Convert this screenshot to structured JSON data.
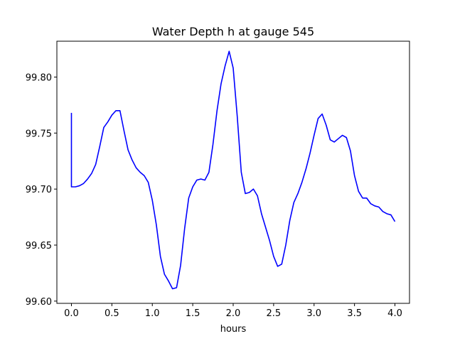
{
  "chart_data": {
    "type": "line",
    "title": "Water Depth h at gauge 545",
    "xlabel": "hours",
    "ylabel": "",
    "xlim": [
      -0.18,
      4.18
    ],
    "ylim": [
      99.598,
      99.832
    ],
    "xticks": [
      0.0,
      0.5,
      1.0,
      1.5,
      2.0,
      2.5,
      3.0,
      3.5,
      4.0
    ],
    "xtick_labels": [
      "0.0",
      "0.5",
      "1.0",
      "1.5",
      "2.0",
      "2.5",
      "3.0",
      "3.5",
      "4.0"
    ],
    "yticks": [
      99.6,
      99.65,
      99.7,
      99.75,
      99.8
    ],
    "ytick_labels": [
      "99.60",
      "99.65",
      "99.70",
      "99.75",
      "99.80"
    ],
    "grid": false,
    "series": [
      {
        "color": "#0000ff",
        "points": [
          [
            0.0,
            99.768
          ],
          [
            0.0,
            99.702
          ],
          [
            0.05,
            99.702
          ],
          [
            0.1,
            99.703
          ],
          [
            0.15,
            99.705
          ],
          [
            0.2,
            99.709
          ],
          [
            0.25,
            99.714
          ],
          [
            0.3,
            99.722
          ],
          [
            0.35,
            99.738
          ],
          [
            0.4,
            99.755
          ],
          [
            0.45,
            99.76
          ],
          [
            0.5,
            99.766
          ],
          [
            0.55,
            99.77
          ],
          [
            0.6,
            99.77
          ],
          [
            0.65,
            99.752
          ],
          [
            0.7,
            99.735
          ],
          [
            0.75,
            99.726
          ],
          [
            0.8,
            99.719
          ],
          [
            0.85,
            99.715
          ],
          [
            0.9,
            99.712
          ],
          [
            0.95,
            99.706
          ],
          [
            1.0,
            99.69
          ],
          [
            1.05,
            99.668
          ],
          [
            1.1,
            99.64
          ],
          [
            1.15,
            99.624
          ],
          [
            1.2,
            99.618
          ],
          [
            1.25,
            99.611
          ],
          [
            1.3,
            99.612
          ],
          [
            1.35,
            99.632
          ],
          [
            1.4,
            99.665
          ],
          [
            1.45,
            99.692
          ],
          [
            1.5,
            99.702
          ],
          [
            1.55,
            99.708
          ],
          [
            1.6,
            99.709
          ],
          [
            1.65,
            99.708
          ],
          [
            1.7,
            99.715
          ],
          [
            1.75,
            99.74
          ],
          [
            1.8,
            99.77
          ],
          [
            1.85,
            99.794
          ],
          [
            1.9,
            99.81
          ],
          [
            1.95,
            99.823
          ],
          [
            2.0,
            99.808
          ],
          [
            2.05,
            99.765
          ],
          [
            2.1,
            99.715
          ],
          [
            2.15,
            99.696
          ],
          [
            2.2,
            99.697
          ],
          [
            2.25,
            99.7
          ],
          [
            2.3,
            99.694
          ],
          [
            2.35,
            99.678
          ],
          [
            2.4,
            99.666
          ],
          [
            2.45,
            99.654
          ],
          [
            2.5,
            99.64
          ],
          [
            2.55,
            99.631
          ],
          [
            2.6,
            99.633
          ],
          [
            2.65,
            99.65
          ],
          [
            2.7,
            99.672
          ],
          [
            2.75,
            99.688
          ],
          [
            2.8,
            99.696
          ],
          [
            2.85,
            99.706
          ],
          [
            2.9,
            99.718
          ],
          [
            2.95,
            99.732
          ],
          [
            3.0,
            99.748
          ],
          [
            3.05,
            99.763
          ],
          [
            3.1,
            99.767
          ],
          [
            3.15,
            99.757
          ],
          [
            3.2,
            99.744
          ],
          [
            3.25,
            99.742
          ],
          [
            3.3,
            99.745
          ],
          [
            3.35,
            99.748
          ],
          [
            3.4,
            99.746
          ],
          [
            3.45,
            99.734
          ],
          [
            3.5,
            99.712
          ],
          [
            3.55,
            99.698
          ],
          [
            3.6,
            99.692
          ],
          [
            3.65,
            99.692
          ],
          [
            3.7,
            99.687
          ],
          [
            3.75,
            99.685
          ],
          [
            3.8,
            99.684
          ],
          [
            3.85,
            99.68
          ],
          [
            3.9,
            99.678
          ],
          [
            3.95,
            99.677
          ],
          [
            4.0,
            99.671
          ]
        ]
      }
    ]
  }
}
